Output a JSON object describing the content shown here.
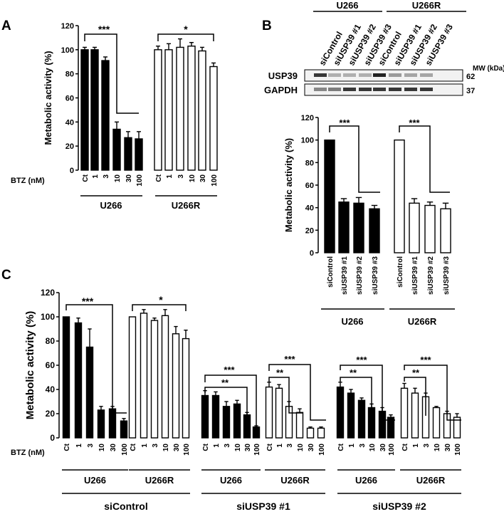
{
  "panel_labels": [
    "A",
    "B",
    "C"
  ],
  "chart_data": [
    {
      "panel": "A",
      "type": "bar",
      "ylabel": "Metabolic activity (%)",
      "ylim": [
        0,
        120
      ],
      "yticks": [
        0,
        20,
        40,
        60,
        80,
        100,
        120
      ],
      "x_prefix": "BTZ (nM)",
      "categories": [
        "Ct",
        "1",
        "3",
        "10",
        "30",
        "100"
      ],
      "groups": [
        {
          "name": "U266",
          "fill": "#000000",
          "values": [
            100,
            100,
            91,
            34,
            27,
            26
          ],
          "errors": [
            2,
            2,
            3,
            6,
            5,
            6
          ]
        },
        {
          "name": "U266R",
          "fill": "#ffffff",
          "values": [
            100,
            100,
            102,
            103,
            99,
            86
          ],
          "errors": [
            3,
            5,
            7,
            3,
            3,
            3
          ]
        }
      ],
      "significance": [
        "***",
        "*"
      ],
      "grid": false
    },
    {
      "panel": "B",
      "type": "bar",
      "ylabel": "Metabolic activity (%)",
      "ylim": [
        0,
        120
      ],
      "yticks": [
        0,
        20,
        40,
        60,
        80,
        100,
        120
      ],
      "categories": [
        "siControl",
        "siUSP39 #1",
        "siUSP39 #2",
        "siUSP39 #3"
      ],
      "groups": [
        {
          "name": "U266",
          "fill": "#000000",
          "values": [
            100,
            45,
            44,
            39
          ],
          "errors": [
            0,
            3,
            5,
            3
          ]
        },
        {
          "name": "U266R",
          "fill": "#ffffff",
          "values": [
            100,
            44,
            42,
            39
          ],
          "errors": [
            0,
            4,
            3,
            5
          ]
        }
      ],
      "significance": [
        "***",
        "***"
      ],
      "grid": false
    },
    {
      "panel": "C",
      "type": "bar",
      "ylabel": "Metabolic activity (%)",
      "ylim": [
        0,
        120
      ],
      "yticks": [
        0,
        20,
        40,
        60,
        80,
        100,
        120
      ],
      "x_prefix": "BTZ (nM)",
      "categories": [
        "Ct",
        "1",
        "3",
        "10",
        "30",
        "100"
      ],
      "conditions": [
        {
          "name": "siControl",
          "groups": [
            {
              "name": "U266",
              "fill": "#000000",
              "values": [
                100,
                95,
                75,
                23,
                24,
                14
              ],
              "errors": [
                0,
                4,
                15,
                3,
                2,
                2
              ]
            },
            {
              "name": "U266R",
              "fill": "#ffffff",
              "values": [
                100,
                103,
                97,
                101,
                86,
                82
              ],
              "errors": [
                0,
                3,
                2,
                5,
                6,
                7
              ]
            }
          ],
          "significance": [
            "***",
            "*"
          ]
        },
        {
          "name": "siUSP39 #1",
          "groups": [
            {
              "name": "U266",
              "fill": "#000000",
              "values": [
                35,
                35,
                26,
                28,
                19,
                9
              ],
              "errors": [
                4,
                3,
                4,
                3,
                2,
                1
              ]
            },
            {
              "name": "U266R",
              "fill": "#ffffff",
              "values": [
                42,
                41,
                26,
                21,
                8,
                8
              ],
              "errors": [
                4,
                3,
                4,
                3,
                1,
                1
              ]
            }
          ],
          "significance": [
            "***",
            "**",
            "***",
            "**"
          ]
        },
        {
          "name": "siUSP39 #2",
          "groups": [
            {
              "name": "U266",
              "fill": "#000000",
              "values": [
                42,
                37,
                31,
                25,
                22,
                17
              ],
              "errors": [
                4,
                3,
                2,
                3,
                3,
                2
              ]
            },
            {
              "name": "U266R",
              "fill": "#ffffff",
              "values": [
                41,
                37,
                34,
                25,
                20,
                17
              ],
              "errors": [
                4,
                4,
                3,
                1,
                2,
                3
              ]
            }
          ],
          "significance": [
            "***",
            "**",
            "***",
            "**"
          ]
        }
      ],
      "grid": false
    }
  ],
  "western_blot": {
    "header_groups": [
      "U266",
      "U266R"
    ],
    "lanes": [
      "siControl",
      "siUSP39 #1",
      "siUSP39 #2",
      "siUSP39 #3",
      "siControl",
      "siUSP39 #1",
      "siUSP39 #2",
      "siUSP39 #3"
    ],
    "mw_label": "MW (kDa)",
    "rows": [
      {
        "protein": "USP39",
        "mw": "62",
        "intensity": [
          0.9,
          0.3,
          0.3,
          0.3,
          1.0,
          0.4,
          0.35,
          0.35
        ]
      },
      {
        "protein": "GAPDH",
        "mw": "37",
        "intensity": [
          0.5,
          0.55,
          0.9,
          0.9,
          0.9,
          0.9,
          0.9,
          0.9
        ]
      }
    ]
  }
}
